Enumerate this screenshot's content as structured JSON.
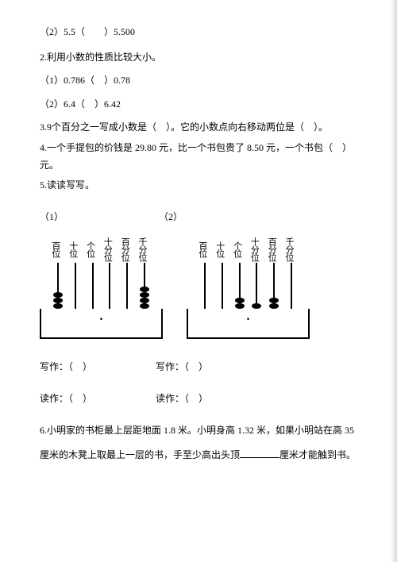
{
  "q1_2": "（2）5.5（　　）5.500",
  "q2_title": "2.利用小数的性质比较大小。",
  "q2_1": "（1）0.786（　）0.78",
  "q2_2": "（2）6.4（　）6.42",
  "q3": "3.9个百分之一写成小数是（　）。它的小数点向右移动两位是（　）。",
  "q4": "4.一个手提包的价钱是 29.80 元，比一个书包贵了 8.50 元，一个书包（　）元。",
  "q5_title": "5.读读写写。",
  "q5_sub1": "（1）",
  "q5_sub2": "（2）",
  "labels": [
    "百位",
    "十位",
    "个位",
    "十分位",
    "百分位",
    "千分位"
  ],
  "write_label": "写作：（　）",
  "read_label": "读作：（　）",
  "q6_a": "6.小明家的书柜最上层距地面 1.8 米。小明身高 1.32 米，如果小明站在高 35",
  "q6_b": "厘米的木凳上取最上一层的书，手至少高出头顶",
  "q6_c": "厘米才能触到书。",
  "abacus1_beads": [
    3,
    0,
    0,
    0,
    0,
    4
  ],
  "abacus2_beads": [
    0,
    0,
    2,
    1,
    2,
    0
  ]
}
